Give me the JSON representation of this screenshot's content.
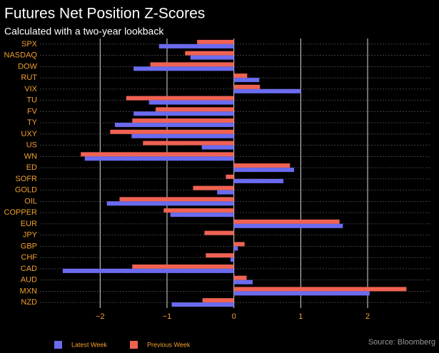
{
  "chart_data": {
    "type": "hbar",
    "title": "Futures Net Position Z-Scores",
    "subtitle": "Calculated with a two-year lookback",
    "source": "Source: Bloomberg",
    "categories": [
      "SPX",
      "NASDAQ",
      "DOW",
      "RUT",
      "VIX",
      "TU",
      "FV",
      "TY",
      "UXY",
      "US",
      "WN",
      "ED",
      "SOFR",
      "GOLD",
      "OIL",
      "COPPER",
      "EUR",
      "JPY",
      "GBP",
      "CHF",
      "CAD",
      "AUD",
      "MXN",
      "NZD"
    ],
    "series": [
      {
        "name": "Previous Week",
        "color": "#f06252",
        "values": [
          -0.55,
          -0.73,
          -1.25,
          0.2,
          0.39,
          -1.61,
          -1.17,
          -1.52,
          -1.85,
          -1.36,
          -2.29,
          0.84,
          -0.12,
          -0.61,
          -1.71,
          -1.05,
          1.58,
          -0.44,
          0.16,
          -0.42,
          -1.52,
          0.19,
          2.58,
          -0.47
        ]
      },
      {
        "name": "Latest Week",
        "color": "#6b6bf0",
        "values": [
          -1.12,
          -0.65,
          -1.5,
          0.38,
          1.0,
          -1.27,
          -1.5,
          -1.78,
          -1.53,
          -0.48,
          -2.23,
          0.9,
          0.74,
          -0.25,
          -1.9,
          -0.95,
          1.63,
          0,
          0.06,
          -0.05,
          -2.56,
          0.28,
          2.03,
          -0.93
        ]
      }
    ],
    "legend_order": [
      1,
      0
    ],
    "xlim": [
      -2.9,
      2.95
    ],
    "xticks": [
      {
        "value": -2,
        "label": "−2"
      },
      {
        "value": -1,
        "label": "−1"
      },
      0,
      1,
      2
    ],
    "grid": true
  }
}
